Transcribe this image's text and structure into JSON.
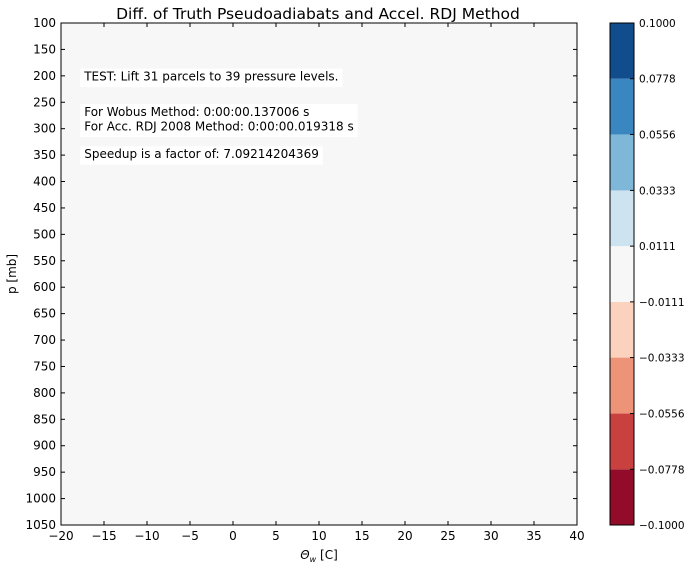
{
  "chart_data": {
    "type": "heatmap",
    "title": "Diff. of Truth Pseudoadiabats and Accel. RDJ Method",
    "xlabel_main": "Θ",
    "xlabel_sub": "w",
    "xlabel_unit": " [C]",
    "ylabel": "p [mb]",
    "xlim": [
      -20,
      40
    ],
    "ylim": [
      1050,
      100
    ],
    "y_inverted": true,
    "x_ticks": [
      -20,
      -15,
      -10,
      -5,
      0,
      5,
      10,
      15,
      20,
      25,
      30,
      35,
      40
    ],
    "y_ticks": [
      100,
      150,
      200,
      250,
      300,
      350,
      400,
      450,
      500,
      550,
      600,
      650,
      700,
      750,
      800,
      850,
      900,
      950,
      1000,
      1050
    ],
    "field_color": "#f7f7f7",
    "annotations": [
      {
        "lines": [
          "TEST: Lift 31 parcels to 39 pressure levels."
        ],
        "x": -17.3,
        "y": 190
      },
      {
        "lines": [
          "For Wobus Method: 0:00:00.137006 s",
          "For Acc. RDJ 2008 Method: 0:00:00.019318 s"
        ],
        "x": -17.3,
        "y": 257
      },
      {
        "lines": [
          "Speedup is a factor of: 7.09214204369"
        ],
        "x": -17.3,
        "y": 337
      }
    ],
    "colorbar": {
      "levels": [
        -0.1,
        -0.0778,
        -0.0556,
        -0.0333,
        -0.0111,
        0.0111,
        0.0333,
        0.0556,
        0.0778,
        0.1
      ],
      "tick_labels": [
        "−0.1000",
        "−0.0778",
        "−0.0556",
        "−0.0333",
        "−0.0111",
        "0.0111",
        "0.0333",
        "0.0556",
        "0.0778",
        "0.1000"
      ],
      "colors": [
        "#920c2a",
        "#c8413f",
        "#ed9478",
        "#fbd2bd",
        "#f7f7f7",
        "#cde3ef",
        "#7fb7d8",
        "#3a86c0",
        "#114c8c"
      ]
    }
  }
}
